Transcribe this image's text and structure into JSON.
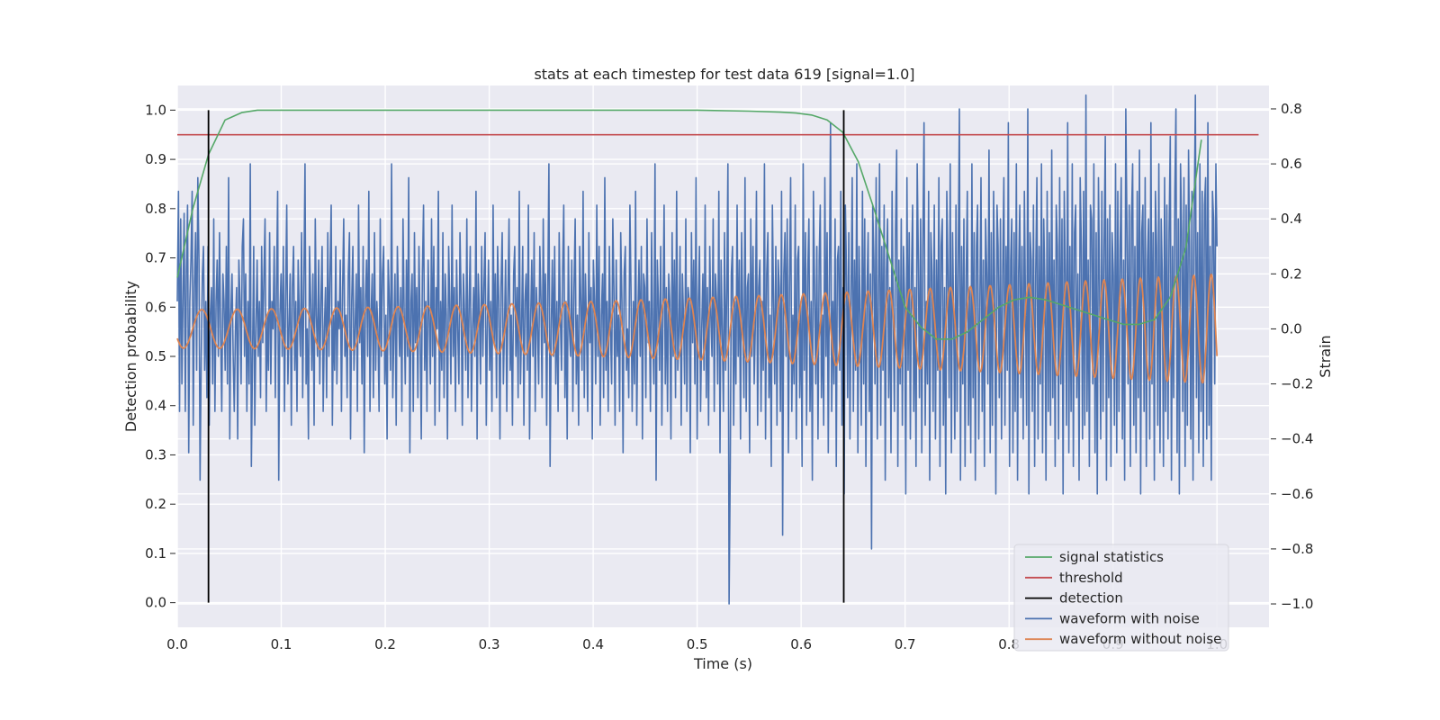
{
  "chart_data": {
    "type": "line",
    "title": "stats at each timestep for test data 619 [signal=1.0]",
    "xlabel": "Time (s)",
    "ylabel_left": "Detection probability",
    "ylabel_right": "Strain",
    "xlim": [
      0.0,
      1.05
    ],
    "ylim_left": [
      -0.05,
      1.05
    ],
    "ylim_right": [
      -1.085,
      0.885
    ],
    "x_ticks": [
      0.0,
      0.1,
      0.2,
      0.3,
      0.4,
      0.5,
      0.6,
      0.7,
      0.8,
      0.9,
      1.0
    ],
    "x_tick_labels": [
      "0.0",
      "0.1",
      "0.2",
      "0.3",
      "0.4",
      "0.5",
      "0.6",
      "0.7",
      "0.8",
      "0.9",
      "1.0"
    ],
    "y_left_ticks": [
      0.0,
      0.1,
      0.2,
      0.3,
      0.4,
      0.5,
      0.6,
      0.7,
      0.8,
      0.9,
      1.0
    ],
    "y_left_tick_labels": [
      "0.0",
      "0.1",
      "0.2",
      "0.3",
      "0.4",
      "0.5",
      "0.6",
      "0.7",
      "0.8",
      "0.9",
      "1.0"
    ],
    "y_right_ticks": [
      0.8,
      0.6,
      0.4,
      0.2,
      0.0,
      -0.2,
      -0.4,
      -0.6,
      -0.8,
      -1.0
    ],
    "y_right_tick_labels": [
      "0.8",
      "0.6",
      "0.4",
      "0.2",
      "0.0",
      "−0.2",
      "−0.4",
      "−0.6",
      "−0.8",
      "−1.0"
    ],
    "grid": true,
    "legend_position": "bottom-right",
    "series": [
      {
        "name": "signal statistics",
        "axis": "left",
        "color": "#55a868",
        "x": [
          0.0,
          0.015,
          0.03,
          0.046,
          0.062,
          0.077,
          0.1,
          0.2,
          0.3,
          0.4,
          0.5,
          0.55,
          0.58,
          0.595,
          0.61,
          0.625,
          0.64,
          0.655,
          0.67,
          0.685,
          0.7,
          0.715,
          0.73,
          0.745,
          0.76,
          0.775,
          0.79,
          0.805,
          0.82,
          0.835,
          0.85,
          0.865,
          0.88,
          0.895,
          0.91,
          0.925,
          0.94,
          0.955,
          0.97,
          0.985
        ],
        "y": [
          0.66,
          0.8,
          0.91,
          0.98,
          0.995,
          1.0,
          1.0,
          1.0,
          1.0,
          1.0,
          1.0,
          0.998,
          0.996,
          0.994,
          0.99,
          0.98,
          0.955,
          0.895,
          0.8,
          0.7,
          0.6,
          0.56,
          0.535,
          0.535,
          0.55,
          0.575,
          0.6,
          0.615,
          0.62,
          0.615,
          0.605,
          0.595,
          0.585,
          0.575,
          0.565,
          0.565,
          0.575,
          0.62,
          0.72,
          0.94
        ]
      },
      {
        "name": "threshold",
        "axis": "left",
        "color": "#c44e52",
        "x": [
          0.0,
          1.04
        ],
        "y": [
          0.95,
          0.95
        ]
      },
      {
        "name": "detection",
        "axis": "left",
        "color": "#000000",
        "x": [
          0.03,
          0.641
        ],
        "y_range": [
          0.0,
          1.0
        ]
      },
      {
        "name": "waveform with noise",
        "axis": "right",
        "color": "#4c72b0",
        "x_start": 0.0,
        "x_end": 1.0,
        "y": [
          0.1,
          0.5,
          -0.3,
          0.4,
          -0.2,
          0.1,
          0.42,
          -0.3,
          0.2,
          0.45,
          -0.45,
          0.1,
          0.25,
          0.5,
          -0.35,
          0.15,
          0.35,
          -0.15,
          0.55,
          0.25,
          -0.55,
          -0.1,
          0.2,
          0.3,
          -0.15,
          0.1,
          -0.25,
          0.3,
          -0.35,
          0.05,
          0.15,
          -0.2,
          0.4,
          -0.3,
          0.1,
          0.25,
          -0.1,
          0.35,
          0.0,
          -0.3,
          0.2,
          0.1,
          -0.15,
          0.3,
          -0.2,
          0.55,
          -0.4,
          0.05,
          0.2,
          -0.1,
          -0.3,
          0.0,
          0.15,
          -0.4,
          0.25,
          0.1,
          -0.2,
          0.3,
          0.4,
          -0.1,
          0.2,
          -0.3,
          0.1,
          -0.2,
          0.6,
          -0.5,
          -0.1,
          0.3,
          -0.35,
          0.0,
          0.25,
          -0.1,
          0.1,
          -0.25,
          0.3,
          -0.05,
          0.2,
          0.4,
          -0.3,
          0.05,
          -0.15,
          0.35,
          -0.2,
          0.1,
          0.0,
          0.3,
          -0.25,
          0.15,
          0.5,
          -0.55,
          0.05,
          0.2,
          -0.1,
          0.3,
          -0.3,
          0.1,
          0.45,
          -0.2,
          0.0,
          0.2,
          -0.35,
          0.15,
          0.3,
          -0.15,
          0.1,
          -0.3,
          0.25,
          0.05,
          -0.1,
          0.35,
          -0.25,
          0.15,
          0.6,
          -0.2,
          0.0,
          -0.4,
          0.3,
          0.1,
          -0.15,
          0.2,
          -0.35,
          0.4,
          0.05,
          -0.1,
          0.25,
          -0.2,
          0.1,
          0.3,
          -0.3,
          0.0,
          0.15,
          -0.25,
          0.35,
          -0.1,
          0.2,
          0.45,
          -0.35,
          0.05,
          -0.15,
          0.3,
          -0.2,
          0.1,
          0.0,
          0.25,
          -0.3,
          0.15,
          0.4,
          -0.1,
          0.05,
          -0.25,
          0.2,
          0.35,
          -0.4,
          0.1,
          0.3,
          -0.15,
          0.0,
          0.2,
          -0.3,
          0.45,
          -0.05,
          0.15,
          -0.2,
          0.3,
          -0.45,
          0.1,
          0.25,
          -0.1,
          0.5,
          -0.3,
          0.05,
          0.2,
          -0.25,
          0.35,
          -0.15,
          0.1,
          0.0,
          -0.3,
          0.4,
          -0.1,
          0.2,
          0.3,
          -0.2,
          0.05,
          -0.4,
          0.25,
          0.1,
          -0.15,
          0.6,
          -0.25,
          0.0,
          0.2,
          -0.35,
          0.3,
          0.1,
          -0.1,
          0.15,
          -0.3,
          0.4,
          0.05,
          -0.2,
          0.25,
          -0.1,
          0.55,
          -0.45,
          0.1,
          0.2,
          -0.3,
          0.35,
          -0.05,
          0.15,
          -0.25,
          0.3,
          0.0,
          -0.4,
          0.2,
          0.45,
          -0.15,
          0.1,
          -0.3,
          0.25,
          0.05,
          -0.2,
          0.4,
          -0.1,
          0.3,
          -0.35,
          0.15,
          0.0,
          0.5,
          -0.3,
          0.1,
          -0.15,
          0.35,
          -0.25,
          0.2,
          0.05,
          -0.4,
          0.3,
          0.1,
          -0.2,
          0.45,
          -0.1,
          0.15,
          -0.3,
          0.25,
          0.0,
          -0.2,
          0.35,
          0.1,
          -0.35,
          0.2,
          0.05,
          -0.15,
          0.4,
          -0.25,
          0.1,
          0.3,
          -0.3,
          0.0,
          0.15,
          -0.1,
          0.5,
          -0.4,
          0.2,
          0.05,
          -0.2,
          0.3,
          -0.1,
          0.15,
          0.35,
          -0.35,
          0.0,
          0.25,
          -0.15,
          0.1,
          -0.3,
          0.45,
          -0.05,
          0.2,
          -0.25,
          0.3,
          0.1,
          -0.4,
          0.15,
          0.35,
          -0.2,
          0.0,
          0.25,
          -0.3,
          0.1,
          0.4,
          -0.15,
          0.05,
          -0.35,
          0.2,
          0.3,
          -0.1,
          0.15,
          -0.25,
          0.5,
          -0.2,
          0.0,
          0.3,
          -0.35,
          0.1,
          0.2,
          -0.15,
          0.45,
          -0.4,
          0.05,
          0.25,
          -0.1,
          0.35,
          -0.3,
          0.15,
          0.0,
          -0.2,
          0.3,
          0.1,
          -0.25,
          0.4,
          -0.05,
          0.2,
          -0.35,
          0.15,
          0.6,
          -0.5,
          0.0,
          0.25,
          -0.1,
          0.3,
          -0.2,
          0.1,
          -0.3,
          0.35,
          0.05,
          -0.15,
          0.2,
          0.45,
          -0.25,
          0.1,
          -0.4,
          0.3,
          0.0,
          -0.1,
          0.25,
          -0.3,
          0.15,
          0.4,
          -0.2,
          0.05,
          -0.35,
          0.3,
          0.1,
          -0.15,
          0.5,
          -0.25,
          0.2,
          0.0,
          -0.3,
          0.35,
          -0.05,
          0.15,
          -0.4,
          0.25,
          0.1,
          -0.2,
          0.45,
          -0.1,
          0.3,
          -0.35,
          0.05,
          0.2,
          -0.25,
          0.55,
          -0.15,
          0.1,
          -0.3,
          0.3,
          0.0,
          -0.2,
          0.4,
          0.15,
          -0.35,
          0.25,
          -0.1,
          0.05,
          -0.3,
          0.35,
          0.1,
          -0.45,
          0.2,
          0.3,
          -0.15,
          0.0,
          -0.25,
          0.45,
          0.15,
          -0.3,
          0.1,
          -0.2,
          0.5,
          -0.35,
          0.05,
          0.25,
          -0.1,
          0.3,
          -0.4,
          0.2,
          0.15,
          -0.25,
          0.4,
          -0.05,
          0.1,
          -0.3,
          0.35,
          0.0,
          -0.2,
          0.6,
          -0.55,
          0.25,
          0.1,
          -0.15,
          0.3,
          -0.35,
          0.05,
          0.45,
          -0.2,
          0.15,
          -0.3,
          0.2,
          0.1,
          -0.4,
          0.35,
          -0.1,
          0.25,
          -0.25,
          0.5,
          -0.15,
          0.0,
          0.3,
          -0.35,
          0.2,
          0.05,
          -0.2,
          0.4,
          -0.3,
          0.15,
          0.1,
          -0.45,
          0.35,
          -0.05,
          0.25,
          -0.2,
          0.55,
          -0.4,
          0.1,
          0.3,
          -0.3,
          0.0,
          0.2,
          -0.15,
          0.45,
          -0.25,
          0.15,
          -0.35,
          0.3,
          0.05,
          -0.1,
          0.4,
          -0.3,
          0.2,
          0.1,
          -0.2,
          0.5,
          -0.45,
          0.25,
          0.0,
          -0.3,
          0.35,
          -0.15,
          0.15,
          0.6,
          -1.0,
          -0.5,
          0.2,
          0.3,
          -0.35,
          0.1,
          -0.2,
          0.45,
          -0.1,
          0.25,
          -0.4,
          0.35,
          0.05,
          -0.25,
          0.55,
          -0.3,
          0.15,
          0.2,
          -0.45,
          0.4,
          -0.1,
          0.3,
          -0.2,
          0.0,
          0.5,
          -0.35,
          0.15,
          0.25,
          -0.3,
          0.1,
          -0.15,
          0.6,
          -0.4,
          0.2,
          0.35,
          -0.25,
          0.05,
          -0.5,
          0.45,
          0.1,
          -0.2,
          0.3,
          -0.35,
          0.25,
          0.15,
          -0.3,
          0.5,
          -0.75,
          0.2,
          0.35,
          -0.1,
          0.4,
          -0.45,
          0.15,
          0.55,
          -0.3,
          0.05,
          -0.2,
          0.45,
          -0.4,
          0.25,
          0.3,
          -0.25,
          0.1,
          -0.5,
          0.6,
          -0.15,
          0.35,
          -0.35,
          0.2,
          0.4,
          -0.3,
          0.1,
          -0.55,
          0.5,
          0.15,
          -0.2,
          0.3,
          -0.4,
          0.25,
          0.45,
          -0.25,
          0.05,
          -0.35,
          0.55,
          -0.1,
          0.35,
          -0.45,
          0.2,
          0.75,
          -0.3,
          0.1,
          -0.2,
          0.4,
          -0.5,
          0.25,
          0.3,
          -0.15,
          0.5,
          -0.35,
          0.15,
          -0.6,
          0.45,
          0.2,
          -0.25,
          0.35,
          -0.4,
          0.1,
          0.55,
          -0.3,
          0.25,
          -0.15,
          0.6,
          -0.45,
          0.3,
          0.05,
          -0.35,
          0.5,
          -0.2,
          0.4,
          -0.5,
          0.15,
          0.35,
          -0.3,
          0.2,
          -0.8,
          0.45,
          0.25,
          -0.2,
          0.55,
          -0.4,
          0.1,
          0.6,
          -0.35,
          0.3,
          -0.15,
          0.45,
          -0.55,
          0.2,
          0.4,
          -0.25,
          0.15,
          -0.45,
          0.5,
          0.05,
          -0.3,
          0.35,
          0.65,
          -0.5,
          0.25,
          -0.2,
          0.4,
          -0.35,
          0.3,
          0.1,
          -0.6,
          0.55,
          -0.15,
          0.35,
          -0.4,
          0.2,
          0.45,
          -0.3,
          0.15,
          -0.5,
          0.6,
          0.25,
          -0.25,
          0.4,
          -0.45,
          0.3,
          0.75,
          -0.35,
          0.1,
          -0.2,
          0.5,
          -0.55,
          0.35,
          0.2,
          -0.3,
          0.45,
          -0.4,
          0.25,
          -0.15,
          0.55,
          -0.5,
          0.3,
          0.4,
          -0.35,
          0.15,
          -0.6,
          0.5,
          0.2,
          -0.25,
          0.6,
          -0.45,
          0.35,
          0.05,
          -0.4,
          0.45,
          -0.3,
          0.25,
          0.8,
          -0.55,
          0.3,
          -0.2,
          0.4,
          -0.5,
          0.2,
          0.5,
          -0.35,
          0.15,
          -0.45,
          0.6,
          -0.25,
          0.35,
          -0.55,
          0.3,
          0.45,
          -0.4,
          0.1,
          0.55,
          -0.3,
          0.25,
          -0.5,
          0.4,
          0.2,
          -0.2,
          0.65,
          -0.45,
          0.35,
          -0.35,
          0.5,
          0.15,
          -0.6,
          0.45,
          0.3,
          -0.25,
          0.4,
          -0.4,
          0.2,
          0.55,
          -0.35,
          0.3,
          -0.15,
          0.75,
          -0.5,
          0.25,
          0.4,
          -0.45,
          0.35,
          -0.3,
          0.6,
          -0.55,
          0.2,
          0.45,
          -0.25,
          0.3,
          -0.4,
          0.5,
          0.1,
          -0.35,
          0.8,
          -0.6,
          0.35,
          0.25,
          -0.3,
          0.45,
          -0.5,
          0.2,
          0.55,
          -0.4,
          0.3,
          -0.2,
          0.6,
          -0.45,
          0.4,
          0.15,
          -0.55,
          0.5,
          -0.3,
          0.35,
          -0.35,
          0.65,
          -0.25,
          0.25,
          -0.5,
          0.45,
          0.3,
          -0.4,
          0.55,
          -0.2,
          0.4,
          -0.6,
          0.5,
          0.2,
          -0.35,
          0.75,
          -0.45,
          0.3,
          -0.3,
          0.6,
          -0.5,
          0.35,
          0.45,
          -0.25,
          0.2,
          -0.55,
          0.55,
          0.3,
          -0.4,
          0.5,
          -0.35,
          0.85,
          -0.3,
          0.25,
          -0.5,
          0.45,
          0.4,
          -0.2,
          0.6,
          -0.45,
          0.35,
          -0.6,
          0.55,
          0.15,
          -0.4,
          0.5,
          -0.3,
          0.3,
          0.7,
          -0.55,
          0.4,
          -0.25,
          0.45,
          -0.5,
          0.35,
          0.2,
          -0.35,
          0.6,
          -0.45,
          0.5,
          -0.3,
          0.3,
          0.55,
          -0.4,
          0.25,
          -0.55,
          0.8,
          0.35,
          -0.2,
          0.45,
          -0.5,
          0.4,
          0.6,
          -0.35,
          0.3,
          -0.45,
          0.5,
          -0.25,
          0.65,
          -0.6,
          0.35,
          0.45,
          -0.3,
          0.55,
          -0.5,
          0.25,
          0.4,
          -0.4,
          0.75,
          -0.2,
          0.35,
          -0.55,
          0.5,
          0.3,
          -0.35,
          0.6,
          -0.45,
          0.4,
          0.2,
          -0.5,
          0.55,
          -0.3,
          0.45,
          -0.4,
          0.35,
          0.7,
          -0.55,
          0.3,
          -0.25,
          0.5,
          0.8,
          -0.45,
          0.4,
          -0.6,
          0.6,
          0.35,
          -0.3,
          0.55,
          -0.5,
          0.45,
          -0.35,
          0.65,
          0.3,
          -0.4,
          0.5,
          -0.55,
          0.4,
          0.85,
          -0.25,
          0.35,
          -0.45,
          0.6,
          -0.3,
          0.5,
          -0.5,
          0.45,
          0.55,
          -0.4,
          0.75,
          -0.35,
          0.3,
          -0.55,
          0.5,
          0.4,
          -0.2,
          0.6,
          0.3
        ]
      },
      {
        "name": "waveform without noise",
        "axis": "right",
        "color": "#dd8452",
        "x_start": 0.0,
        "x_end": 1.0,
        "f0": 28.0,
        "f1": 60.0,
        "a0": 0.07,
        "a1": 0.2,
        "phase": 3.66
      }
    ]
  }
}
